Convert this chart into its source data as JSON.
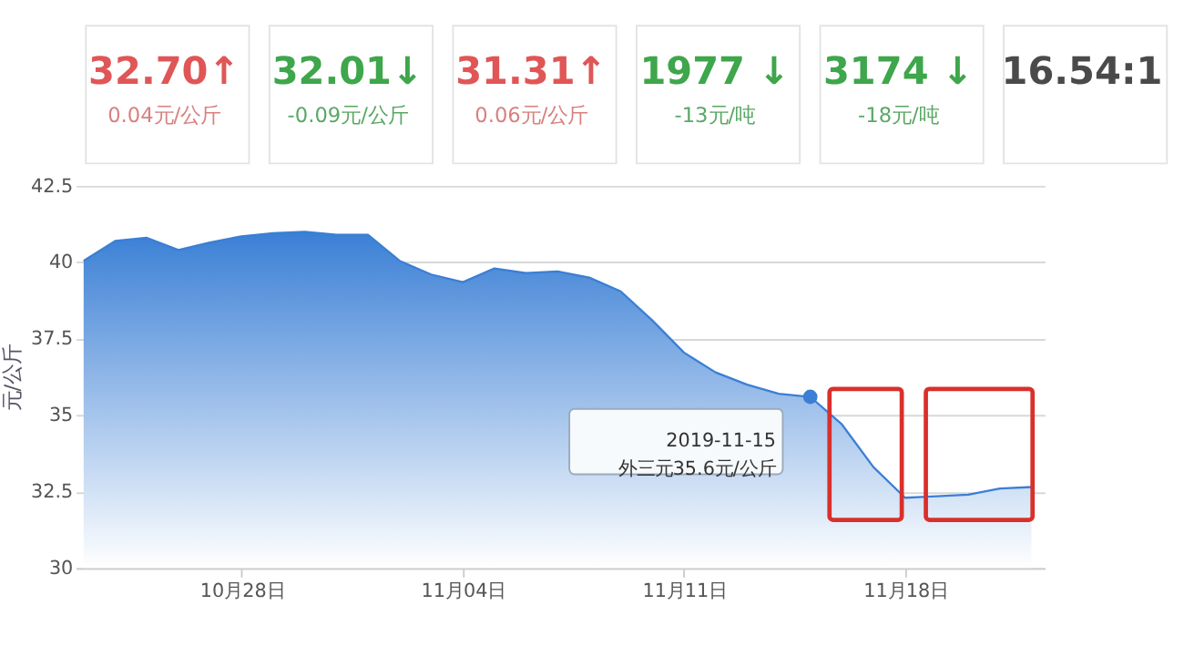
{
  "chart_data": [
    {
      "type": "other",
      "annotations": [
        "32.70↑",
        "0.04元/公斤",
        "32.01↓",
        "-0.09元/公斤",
        "31.31↑",
        "0.06元/公斤",
        "1977 ↓",
        "-13元/吨",
        "3174 ↓",
        "-18元/吨",
        "16.54:1"
      ],
      "colors": [
        "#e05656",
        "#d98080",
        "#3ea64b",
        "#5aa865",
        "#e05656",
        "#d98080",
        "#3ea64b",
        "#5aa865",
        "#3ea64b",
        "#5aa865",
        "#4a4a4a"
      ]
    },
    {
      "type": "area",
      "ylabel": "元/公斤",
      "x": [
        "2019-10-23",
        "2019-10-24",
        "2019-10-25",
        "2019-10-26",
        "2019-10-27",
        "2019-10-28",
        "2019-10-29",
        "2019-10-30",
        "2019-10-31",
        "2019-11-01",
        "2019-11-02",
        "2019-11-03",
        "2019-11-04",
        "2019-11-05",
        "2019-11-06",
        "2019-11-07",
        "2019-11-08",
        "2019-11-09",
        "2019-11-10",
        "2019-11-11",
        "2019-11-12",
        "2019-11-13",
        "2019-11-14",
        "2019-11-15",
        "2019-11-16",
        "2019-11-17",
        "2019-11-18",
        "2019-11-19",
        "2019-11-20",
        "2019-11-21",
        "2019-11-22"
      ],
      "series": [
        {
          "color": "#3a7fd5",
          "values": [
            40.05,
            40.7,
            40.8,
            40.4,
            40.65,
            40.85,
            40.95,
            41.0,
            40.9,
            40.9,
            40.05,
            39.6,
            39.35,
            39.8,
            39.65,
            39.7,
            39.5,
            39.05,
            38.1,
            37.05,
            36.4,
            36.0,
            35.7,
            35.6,
            34.7,
            33.3,
            32.3,
            32.35,
            32.4,
            32.6,
            32.65
          ]
        }
      ],
      "xlim": [
        "2019-10-22T18:00",
        "2019-11-22T10:00"
      ],
      "xticks": [
        {
          "value": "2019-10-28",
          "label": "10月28日"
        },
        {
          "value": "2019-11-04",
          "label": "11月04日"
        },
        {
          "value": "2019-11-11",
          "label": "11月11日"
        },
        {
          "value": "2019-11-18",
          "label": "11月18日"
        }
      ],
      "ylim": [
        30,
        42.5
      ],
      "yticks": [
        30,
        32.5,
        35,
        37.5,
        40,
        42.5
      ],
      "grid": "y",
      "annotations": [
        {
          "text": "2019-11-15\n外三元35.6元/公斤",
          "x": "2019-11-15",
          "y": 35.6
        }
      ]
    }
  ]
}
